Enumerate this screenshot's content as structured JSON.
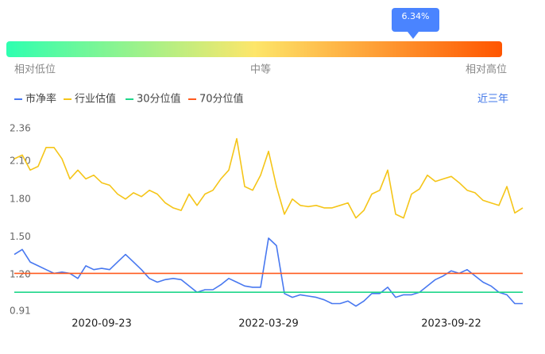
{
  "gauge": {
    "tooltip": "6.34%",
    "low_label": "相对低位",
    "mid_label": "中等",
    "high_label": "相对高位"
  },
  "range_button": "近三年",
  "chart_data": {
    "type": "line",
    "categories": [
      null,
      null,
      null,
      null,
      null,
      null,
      null,
      null,
      null,
      null,
      null,
      "2020-09-23",
      null,
      null,
      null,
      null,
      null,
      null,
      null,
      null,
      null,
      null,
      null,
      null,
      null,
      null,
      null,
      null,
      null,
      null,
      null,
      null,
      "2022-03-29",
      null,
      null,
      null,
      null,
      null,
      null,
      null,
      null,
      null,
      null,
      null,
      null,
      null,
      null,
      null,
      null,
      null,
      null,
      null,
      null,
      null,
      null,
      "2023-09-22",
      null,
      null,
      null,
      null,
      null,
      null,
      null,
      null,
      null
    ],
    "ylim": [
      0.91,
      2.36
    ],
    "yticks": [
      0.91,
      {
        "value": 1.2,
        "label": "1.20"
      },
      {
        "value": 1.5,
        "label": "1.50"
      },
      {
        "value": 1.8,
        "label": "1.80"
      },
      {
        "value": 2.1,
        "label": "2.10"
      },
      2.36
    ],
    "grid": false,
    "legend": "top",
    "series": [
      {
        "name": "市净率",
        "color": "#4878f0",
        "values": [
          1.36,
          1.4,
          1.3,
          1.27,
          1.24,
          1.21,
          1.22,
          1.21,
          1.17,
          1.27,
          1.24,
          1.25,
          1.24,
          1.3,
          1.36,
          1.3,
          1.24,
          1.17,
          1.14,
          1.16,
          1.17,
          1.16,
          1.11,
          1.06,
          1.08,
          1.08,
          1.12,
          1.17,
          1.14,
          1.11,
          1.1,
          1.1,
          1.49,
          1.43,
          1.05,
          1.02,
          1.04,
          1.03,
          1.02,
          1.0,
          0.97,
          0.97,
          0.99,
          0.95,
          0.99,
          1.05,
          1.05,
          1.1,
          1.02,
          1.04,
          1.04,
          1.06,
          1.11,
          1.16,
          1.19,
          1.23,
          1.21,
          1.24,
          1.19,
          1.14,
          1.11,
          1.06,
          1.04,
          0.97,
          0.97
        ]
      },
      {
        "name": "行业估值",
        "color": "#f5c518",
        "values": [
          2.12,
          2.15,
          2.03,
          2.06,
          2.21,
          2.21,
          2.12,
          1.96,
          2.03,
          1.96,
          1.99,
          1.93,
          1.91,
          1.84,
          1.8,
          1.85,
          1.82,
          1.87,
          1.84,
          1.77,
          1.73,
          1.71,
          1.84,
          1.75,
          1.84,
          1.87,
          1.96,
          2.03,
          2.28,
          1.9,
          1.87,
          1.99,
          2.18,
          1.9,
          1.68,
          1.8,
          1.75,
          1.74,
          1.75,
          1.73,
          1.73,
          1.75,
          1.77,
          1.65,
          1.71,
          1.84,
          1.87,
          2.03,
          1.68,
          1.65,
          1.84,
          1.88,
          1.99,
          1.94,
          1.96,
          1.98,
          1.93,
          1.87,
          1.85,
          1.79,
          1.77,
          1.75,
          1.9,
          1.69,
          1.73
        ]
      },
      {
        "name": "30分位值",
        "color": "#1ed68a",
        "values": [
          1.06,
          1.06,
          1.06,
          1.06,
          1.06,
          1.06,
          1.06,
          1.06,
          1.06,
          1.06,
          1.06,
          1.06,
          1.06,
          1.06,
          1.06,
          1.06,
          1.06,
          1.06,
          1.06,
          1.06,
          1.06,
          1.06,
          1.06,
          1.06,
          1.06,
          1.06,
          1.06,
          1.06,
          1.06,
          1.06,
          1.06,
          1.06,
          1.06,
          1.06,
          1.06,
          1.06,
          1.06,
          1.06,
          1.06,
          1.06,
          1.06,
          1.06,
          1.06,
          1.06,
          1.06,
          1.06,
          1.06,
          1.06,
          1.06,
          1.06,
          1.06,
          1.06,
          1.06,
          1.06,
          1.06,
          1.06,
          1.06,
          1.06,
          1.06,
          1.06,
          1.06,
          1.06,
          1.06,
          1.06,
          1.06
        ]
      },
      {
        "name": "70分位值",
        "color": "#ff5a1f",
        "values": [
          1.21,
          1.21,
          1.21,
          1.21,
          1.21,
          1.21,
          1.21,
          1.21,
          1.21,
          1.21,
          1.21,
          1.21,
          1.21,
          1.21,
          1.21,
          1.21,
          1.21,
          1.21,
          1.21,
          1.21,
          1.21,
          1.21,
          1.21,
          1.21,
          1.21,
          1.21,
          1.21,
          1.21,
          1.21,
          1.21,
          1.21,
          1.21,
          1.21,
          1.21,
          1.21,
          1.21,
          1.21,
          1.21,
          1.21,
          1.21,
          1.21,
          1.21,
          1.21,
          1.21,
          1.21,
          1.21,
          1.21,
          1.21,
          1.21,
          1.21,
          1.21,
          1.21,
          1.21,
          1.21,
          1.21,
          1.21,
          1.21,
          1.21,
          1.21,
          1.21,
          1.21,
          1.21,
          1.21,
          1.21,
          1.21
        ]
      }
    ]
  }
}
